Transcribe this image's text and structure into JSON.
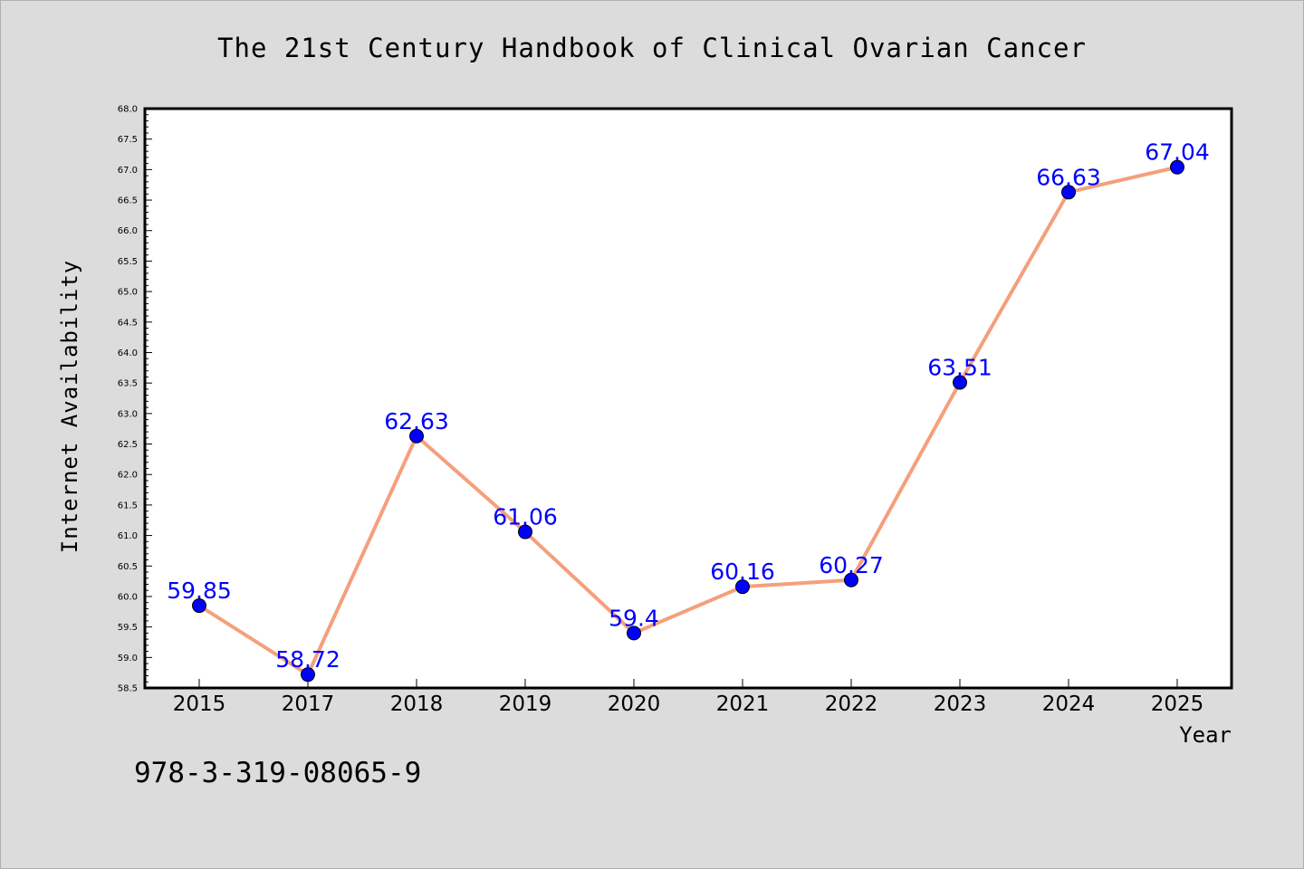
{
  "chart_data": {
    "type": "line",
    "title": "The 21st Century Handbook of Clinical Ovarian Cancer",
    "xlabel": "Year",
    "ylabel": "Internet Availability",
    "categories": [
      "2015",
      "2017",
      "2018",
      "2019",
      "2020",
      "2021",
      "2022",
      "2023",
      "2024",
      "2025"
    ],
    "series": [
      {
        "values": [
          59.85,
          58.72,
          62.63,
          61.06,
          59.4,
          60.16,
          60.27,
          63.51,
          66.63,
          67.04
        ],
        "data_labels": [
          "59.85",
          "58.72",
          "62.63",
          "61.06",
          "59.4",
          "60.16",
          "60.27",
          "63.51",
          "66.63",
          "67.04"
        ]
      }
    ],
    "ylim": [
      58.5,
      68.0
    ],
    "yticks": [
      "58.5",
      "59.0",
      "59.5",
      "60.0",
      "60.5",
      "61.0",
      "61.5",
      "62.0",
      "62.5",
      "63.0",
      "63.5",
      "64.0",
      "64.5",
      "65.0",
      "65.5",
      "66.0",
      "66.5",
      "67.0",
      "67.5",
      "68.0"
    ],
    "grid": false,
    "colors": {
      "line": "#f4a07c",
      "marker": "#0000ff",
      "label": "#0000ff",
      "background": "#dcdcdc",
      "plot_background": "#ffffff"
    }
  },
  "footer": {
    "isbn": "978-3-319-08065-9"
  }
}
